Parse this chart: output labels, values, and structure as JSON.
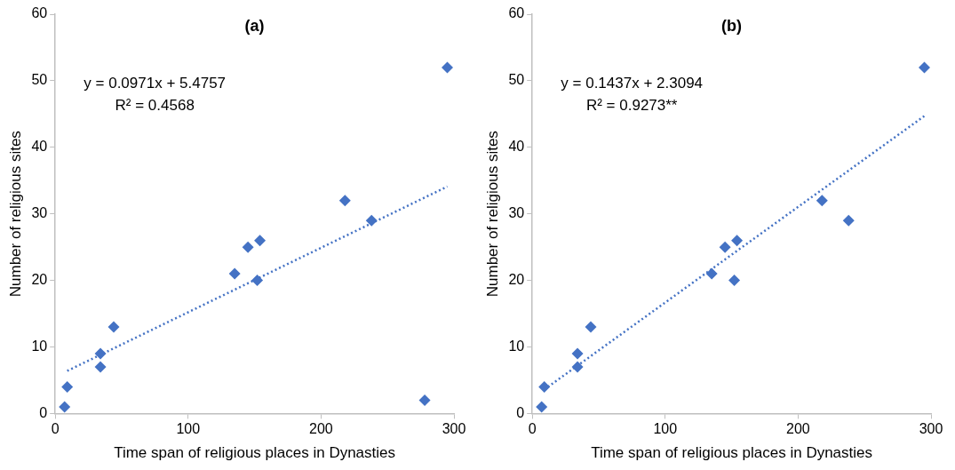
{
  "chart_data": [
    {
      "type": "scatter",
      "title": "(a)",
      "xlabel": "Time span of religious places in Dynasties",
      "ylabel": "Number of religious sites",
      "annotations": [
        "y = 0.0971x + 5.4757",
        "R² = 0.4568"
      ],
      "xlim": [
        0,
        300
      ],
      "xticks": [
        0,
        100,
        200,
        300
      ],
      "ylim": [
        0,
        60
      ],
      "yticks": [
        0,
        10,
        20,
        30,
        40,
        50,
        60
      ],
      "grid": false,
      "legend": false,
      "series": [
        {
          "color": "#4472c4",
          "marker": "diamond",
          "x": [
            7,
            9,
            34,
            34,
            44,
            135,
            145,
            152,
            154,
            218,
            238,
            278,
            295
          ],
          "values": [
            1,
            4,
            9,
            7,
            13,
            21,
            25,
            20,
            26,
            32,
            29,
            2,
            52
          ]
        },
        {
          "type": "line",
          "marker": "none",
          "line_style": "dotted",
          "color": "#4472c4",
          "x": [
            9,
            295
          ],
          "values": [
            6.4,
            34.1
          ]
        }
      ]
    },
    {
      "type": "scatter",
      "title": "(b)",
      "xlabel": "Time span of religious places in Dynasties",
      "ylabel": "Number of religious sites",
      "annotations": [
        "y = 0.1437x + 2.3094",
        "R² = 0.9273**"
      ],
      "xlim": [
        0,
        300
      ],
      "xticks": [
        0,
        100,
        200,
        300
      ],
      "ylim": [
        0,
        60
      ],
      "yticks": [
        0,
        10,
        20,
        30,
        40,
        50,
        60
      ],
      "grid": false,
      "legend": false,
      "series": [
        {
          "color": "#4472c4",
          "marker": "diamond",
          "x": [
            7,
            9,
            34,
            34,
            44,
            135,
            145,
            152,
            154,
            218,
            238,
            295
          ],
          "values": [
            1,
            4,
            9,
            7,
            13,
            21,
            25,
            20,
            26,
            32,
            29,
            52
          ]
        },
        {
          "type": "line",
          "marker": "none",
          "line_style": "dotted",
          "color": "#4472c4",
          "x": [
            9,
            295
          ],
          "values": [
            3.6,
            44.7
          ]
        }
      ]
    }
  ]
}
